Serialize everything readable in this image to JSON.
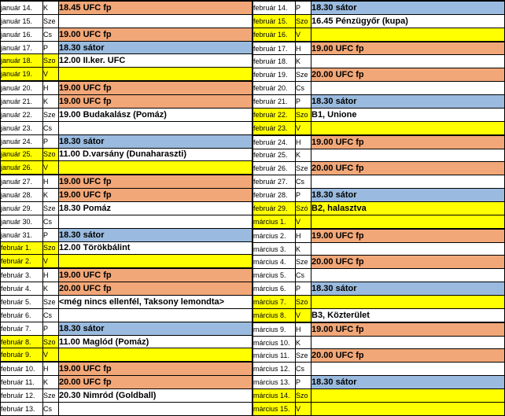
{
  "colors": {
    "training_row": "#f2a778",
    "tent_row": "#9abbdf",
    "weekend_row": "#ffff00",
    "default_row": "#ffffff",
    "grid": "#000000",
    "text": "#000000"
  },
  "tables": [
    {
      "id": "left",
      "rows": [
        {
          "date": "január 14.",
          "day": "K",
          "event": "18.45 UFC fp",
          "date_bg": "plain",
          "event_bg": "training",
          "thick": false
        },
        {
          "date": "január 15.",
          "day": "Sze",
          "event": "",
          "date_bg": "plain",
          "event_bg": "plain",
          "thick": false
        },
        {
          "date": "január 16.",
          "day": "Cs",
          "event": "19.00 UFC fp",
          "date_bg": "plain",
          "event_bg": "training",
          "thick": false
        },
        {
          "date": "január 17.",
          "day": "P",
          "event": "18.30 sátor",
          "date_bg": "plain",
          "event_bg": "tent",
          "thick": false
        },
        {
          "date": "január 18.",
          "day": "Szo",
          "event": "12.00 II.ker. UFC",
          "date_bg": "weekend",
          "event_bg": "plain",
          "thick": false
        },
        {
          "date": "január 19.",
          "day": "V",
          "event": "",
          "date_bg": "weekend",
          "event_bg": "weekend",
          "thick": true
        },
        {
          "date": "január 20.",
          "day": "H",
          "event": "19.00 UFC fp",
          "date_bg": "plain",
          "event_bg": "training",
          "thick": false
        },
        {
          "date": "január 21.",
          "day": "K",
          "event": "19.00 UFC fp",
          "date_bg": "plain",
          "event_bg": "training",
          "thick": false
        },
        {
          "date": "január 22.",
          "day": "Sze",
          "event": "19.00 Budakalász (Pomáz)",
          "date_bg": "plain",
          "event_bg": "plain",
          "thick": false
        },
        {
          "date": "január 23.",
          "day": "Cs",
          "event": "",
          "date_bg": "plain",
          "event_bg": "plain",
          "thick": false
        },
        {
          "date": "január 24.",
          "day": "P",
          "event": "18.30 sátor",
          "date_bg": "plain",
          "event_bg": "tent",
          "thick": false
        },
        {
          "date": "január 25.",
          "day": "Szo",
          "event": "11.00 D.varsány (Dunaharaszti)",
          "date_bg": "weekend",
          "event_bg": "plain",
          "thick": false
        },
        {
          "date": "január 26.",
          "day": "V",
          "event": "",
          "date_bg": "weekend",
          "event_bg": "weekend",
          "thick": true
        },
        {
          "date": "január 27.",
          "day": "H",
          "event": "19.00 UFC fp",
          "date_bg": "plain",
          "event_bg": "training",
          "thick": false
        },
        {
          "date": "január 28.",
          "day": "K",
          "event": "19.00 UFC fp",
          "date_bg": "plain",
          "event_bg": "training",
          "thick": false
        },
        {
          "date": "január 29.",
          "day": "Sze",
          "event": "18.30 Pomáz",
          "date_bg": "plain",
          "event_bg": "plain",
          "thick": false
        },
        {
          "date": "január 30.",
          "day": "Cs",
          "event": "",
          "date_bg": "plain",
          "event_bg": "plain",
          "thick": false
        },
        {
          "date": "január 31.",
          "day": "P",
          "event": "18.30 sátor",
          "date_bg": "plain",
          "event_bg": "tent",
          "thick": false
        },
        {
          "date": "február 1.",
          "day": "Szo",
          "event": "12.00 Törökbálint",
          "date_bg": "weekend",
          "event_bg": "plain",
          "thick": false
        },
        {
          "date": "február 2.",
          "day": "V",
          "event": "",
          "date_bg": "weekend",
          "event_bg": "weekend",
          "thick": true
        },
        {
          "date": "február 3.",
          "day": "H",
          "event": "19.00 UFC fp",
          "date_bg": "plain",
          "event_bg": "training",
          "thick": false
        },
        {
          "date": "február 4.",
          "day": "K",
          "event": "20.00 UFC fp",
          "date_bg": "plain",
          "event_bg": "training",
          "thick": false
        },
        {
          "date": "február 5.",
          "day": "Sze",
          "event": "<még nincs ellenfél, Taksony lemondta>",
          "date_bg": "plain",
          "event_bg": "plain",
          "thick": false
        },
        {
          "date": "február 6.",
          "day": "Cs",
          "event": "",
          "date_bg": "plain",
          "event_bg": "plain",
          "thick": false
        },
        {
          "date": "február 7.",
          "day": "P",
          "event": "18.30 sátor",
          "date_bg": "plain",
          "event_bg": "tent",
          "thick": false
        },
        {
          "date": "február 8.",
          "day": "Szo",
          "event": "11.00 Maglód (Pomáz)",
          "date_bg": "weekend",
          "event_bg": "plain",
          "thick": false
        },
        {
          "date": "február 9.",
          "day": "V",
          "event": "",
          "date_bg": "weekend",
          "event_bg": "weekend",
          "thick": true
        },
        {
          "date": "február 10.",
          "day": "H",
          "event": "19.00 UFC fp",
          "date_bg": "plain",
          "event_bg": "training",
          "thick": false
        },
        {
          "date": "február 11.",
          "day": "K",
          "event": "20.00 UFC fp",
          "date_bg": "plain",
          "event_bg": "training",
          "thick": false
        },
        {
          "date": "február 12.",
          "day": "Sze",
          "event": "20.30 Nimród (Goldball)",
          "date_bg": "plain",
          "event_bg": "plain",
          "thick": false
        },
        {
          "date": "február 13.",
          "day": "Cs",
          "event": "",
          "date_bg": "plain",
          "event_bg": "plain",
          "thick": false
        }
      ]
    },
    {
      "id": "right",
      "rows": [
        {
          "date": "február 14.",
          "day": "P",
          "event": "18.30 sátor",
          "date_bg": "plain",
          "event_bg": "tent",
          "thick": false
        },
        {
          "date": "február 15.",
          "day": "Szo",
          "event": "16.45 Pénzügyőr (kupa)",
          "date_bg": "weekend",
          "event_bg": "plain",
          "thick": false
        },
        {
          "date": "február 16.",
          "day": "V",
          "event": "",
          "date_bg": "weekend",
          "event_bg": "weekend",
          "thick": true
        },
        {
          "date": "február 17.",
          "day": "H",
          "event": "19.00 UFC fp",
          "date_bg": "plain",
          "event_bg": "training",
          "thick": false
        },
        {
          "date": "február 18.",
          "day": "K",
          "event": "",
          "date_bg": "plain",
          "event_bg": "plain",
          "thick": false
        },
        {
          "date": "február 19.",
          "day": "Sze",
          "event": "20.00 UFC fp",
          "date_bg": "plain",
          "event_bg": "training",
          "thick": false
        },
        {
          "date": "február 20.",
          "day": "Cs",
          "event": "",
          "date_bg": "plain",
          "event_bg": "plain",
          "thick": false
        },
        {
          "date": "február 21.",
          "day": "P",
          "event": "18.30 sátor",
          "date_bg": "plain",
          "event_bg": "tent",
          "thick": false
        },
        {
          "date": "február 22.",
          "day": "Szo",
          "event": "B1, Unione",
          "date_bg": "weekend",
          "event_bg": "plain",
          "thick": false
        },
        {
          "date": "február 23.",
          "day": "V",
          "event": "",
          "date_bg": "weekend",
          "event_bg": "weekend",
          "thick": true
        },
        {
          "date": "február 24.",
          "day": "H",
          "event": "19.00 UFC fp",
          "date_bg": "plain",
          "event_bg": "training",
          "thick": false
        },
        {
          "date": "február 25.",
          "day": "K",
          "event": "",
          "date_bg": "plain",
          "event_bg": "plain",
          "thick": false
        },
        {
          "date": "február 26.",
          "day": "Sze",
          "event": "20.00 UFC fp",
          "date_bg": "plain",
          "event_bg": "training",
          "thick": false
        },
        {
          "date": "február 27.",
          "day": "Cs",
          "event": "",
          "date_bg": "plain",
          "event_bg": "plain",
          "thick": false
        },
        {
          "date": "február 28.",
          "day": "P",
          "event": "18.30 sátor",
          "date_bg": "plain",
          "event_bg": "tent",
          "thick": false
        },
        {
          "date": "február 29.",
          "day": "Szó",
          "event": "B2, halasztva",
          "date_bg": "weekend",
          "event_bg": "weekend",
          "thick": false
        },
        {
          "date": "március 1.",
          "day": "V",
          "event": "",
          "date_bg": "weekend",
          "event_bg": "weekend",
          "thick": true
        },
        {
          "date": "március 2.",
          "day": "H",
          "event": "19.00 UFC fp",
          "date_bg": "plain",
          "event_bg": "training",
          "thick": false
        },
        {
          "date": "március 3.",
          "day": "K",
          "event": "",
          "date_bg": "plain",
          "event_bg": "plain",
          "thick": false
        },
        {
          "date": "március 4.",
          "day": "Sze",
          "event": "20.00 UFC fp",
          "date_bg": "plain",
          "event_bg": "training",
          "thick": false
        },
        {
          "date": "március 5.",
          "day": "Cs",
          "event": "",
          "date_bg": "plain",
          "event_bg": "plain",
          "thick": false
        },
        {
          "date": "március 6.",
          "day": "P",
          "event": "18.30 sátor",
          "date_bg": "plain",
          "event_bg": "tent",
          "thick": false
        },
        {
          "date": "március 7.",
          "day": "Szo",
          "event": "",
          "date_bg": "weekend",
          "event_bg": "weekend",
          "thick": false
        },
        {
          "date": "március 8.",
          "day": "V",
          "event": "B3, Közterület",
          "date_bg": "weekend",
          "event_bg": "plain",
          "thick": true
        },
        {
          "date": "március 9.",
          "day": "H",
          "event": "19.00 UFC fp",
          "date_bg": "plain",
          "event_bg": "training",
          "thick": false
        },
        {
          "date": "március 10.",
          "day": "K",
          "event": "",
          "date_bg": "plain",
          "event_bg": "plain",
          "thick": false
        },
        {
          "date": "március 11.",
          "day": "Sze",
          "event": "20.00 UFC fp",
          "date_bg": "plain",
          "event_bg": "training",
          "thick": false
        },
        {
          "date": "március 12.",
          "day": "Cs",
          "event": "",
          "date_bg": "plain",
          "event_bg": "plain",
          "thick": false
        },
        {
          "date": "március 13.",
          "day": "P",
          "event": "18.30 sátor",
          "date_bg": "plain",
          "event_bg": "tent",
          "thick": false
        },
        {
          "date": "március 14.",
          "day": "Szo",
          "event": "",
          "date_bg": "weekend",
          "event_bg": "weekend",
          "thick": false
        },
        {
          "date": "március 15.",
          "day": "V",
          "event": "",
          "date_bg": "weekend",
          "event_bg": "weekend",
          "thick": false
        }
      ]
    }
  ]
}
